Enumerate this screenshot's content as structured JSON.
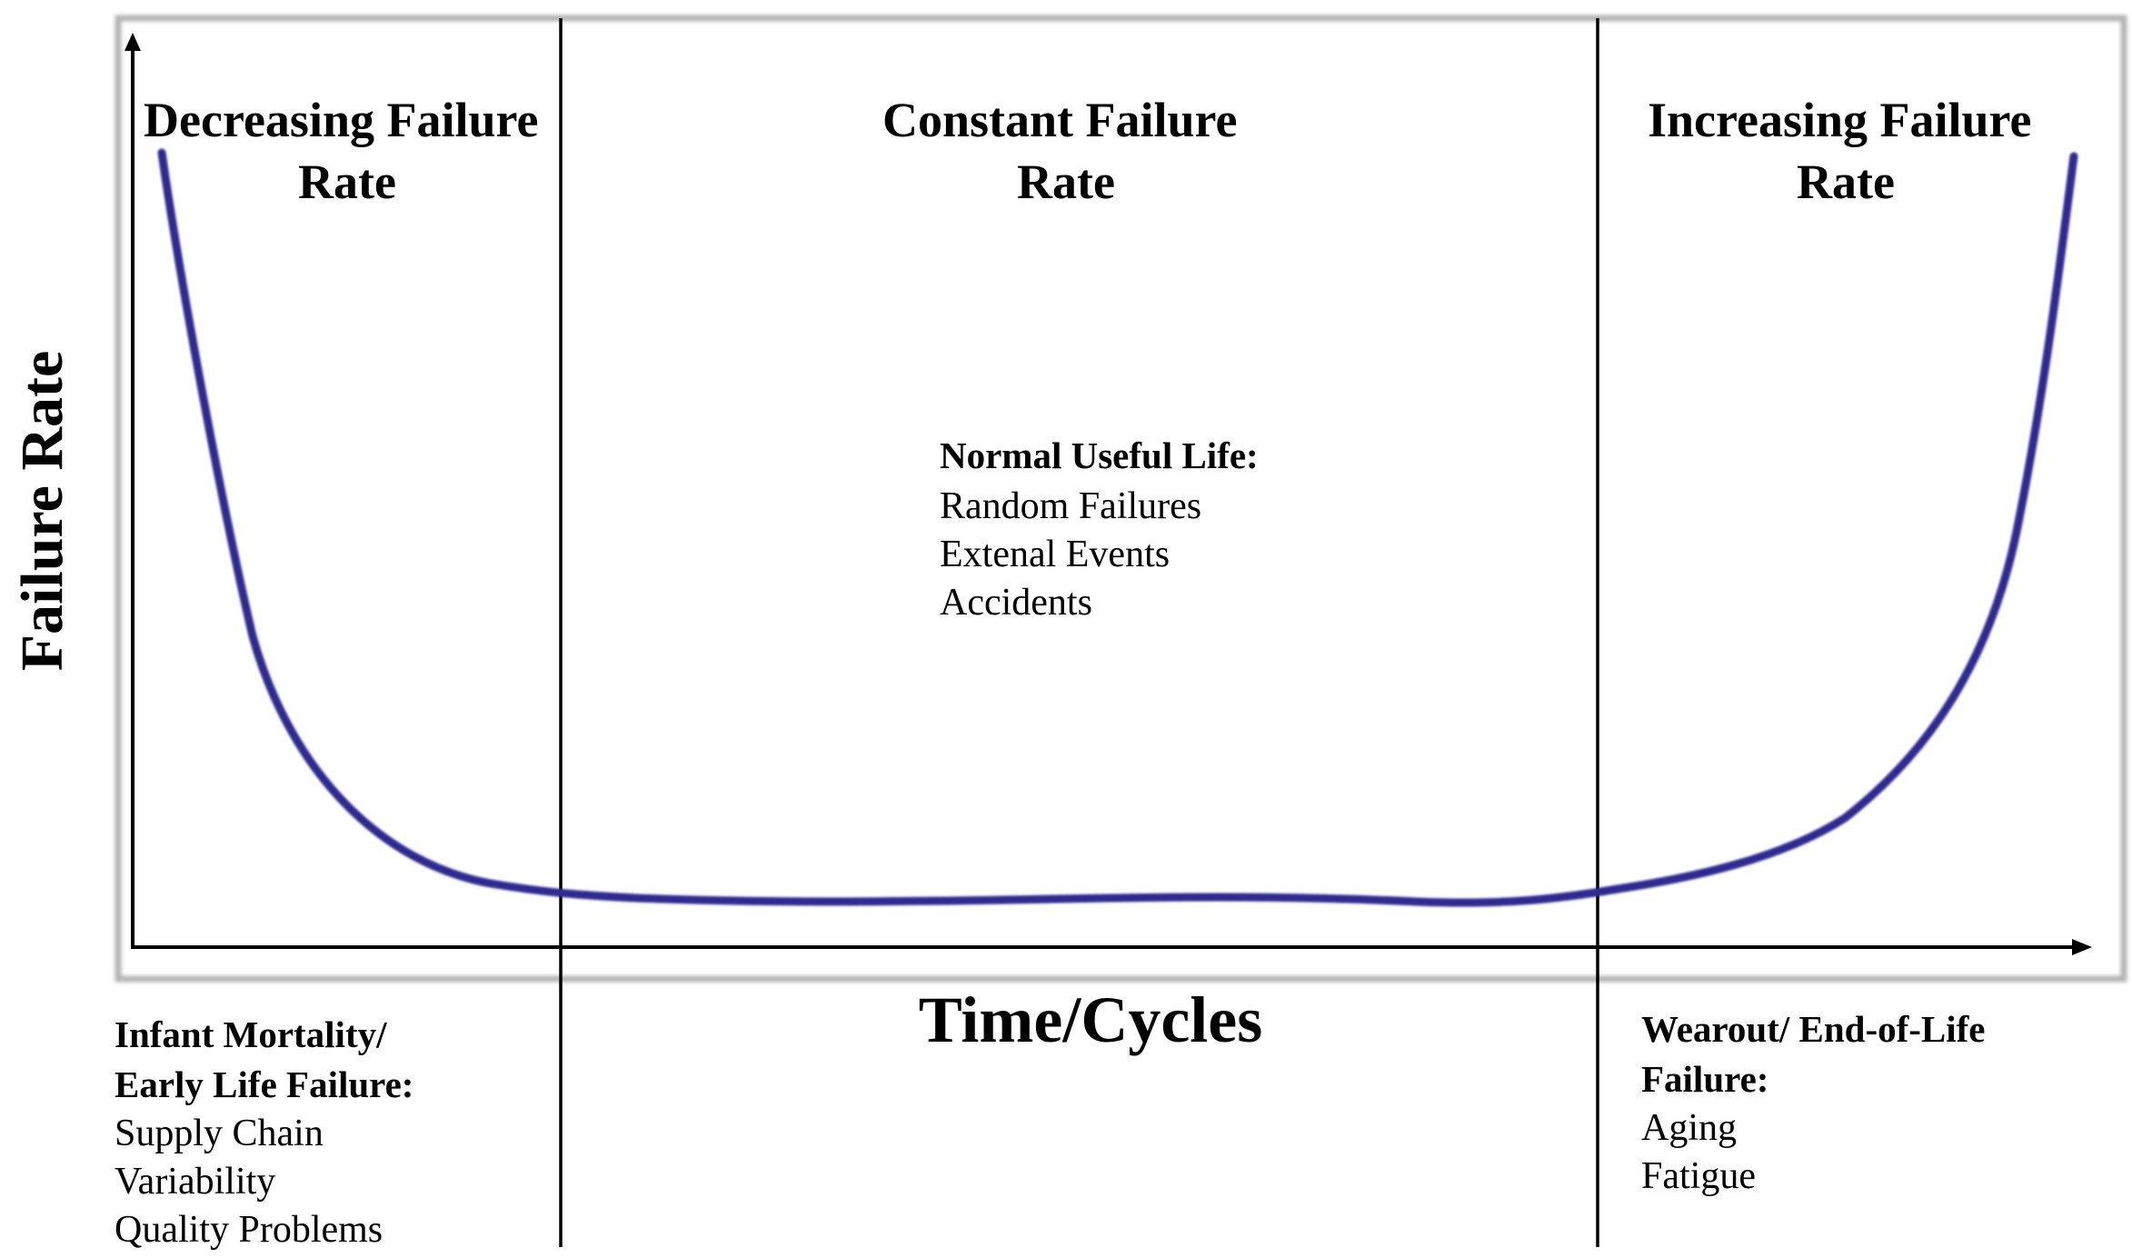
{
  "colors": {
    "curve": "#2e2a8f",
    "frame": "#b3b3b3",
    "axes": "#000000",
    "dividers": "#000000",
    "text": "#000000"
  },
  "axes": {
    "y_label": "Failure Rate",
    "x_label": "Time/Cycles"
  },
  "regions": [
    {
      "title_line1": "Decreasing Failure",
      "title_line2": "Rate"
    },
    {
      "title_line1": "Constant Failure",
      "title_line2": "Rate"
    },
    {
      "title_line1": "Increasing Failure",
      "title_line2": "Rate"
    }
  ],
  "notes": {
    "useful_life": {
      "heading": "Normal Useful Life:",
      "items": [
        "Random Failures",
        "Extenal Events",
        "Accidents"
      ]
    },
    "early_life": {
      "heading_line1": "Infant Mortality/",
      "heading_line2": "Early Life Failure:",
      "items": [
        "Supply Chain",
        "Variability",
        "Quality Problems"
      ]
    },
    "wearout": {
      "heading_line1": "Wearout/ End-of-Life",
      "heading_line2": "Failure:",
      "items": [
        "Aging",
        "Fatigue"
      ]
    }
  },
  "curve": {
    "shape": "bathtub",
    "icon": "bathtub-curve"
  }
}
